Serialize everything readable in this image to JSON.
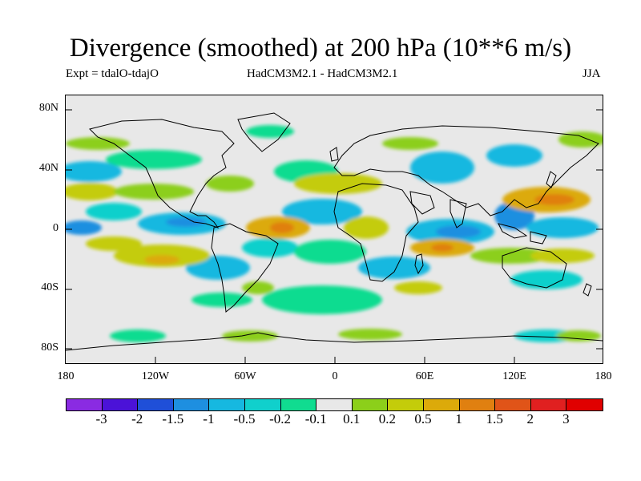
{
  "title": "Divergence (smoothed) at 200 hPa (10**6 m/s)",
  "subtitle_left": "Expt = tdalO-tdajO",
  "subtitle_center": "HadCM3M2.1 - HadCM3M2.1",
  "subtitle_right": "JJA",
  "y_ticks": [
    "80N",
    "40N",
    "0",
    "40S",
    "80S"
  ],
  "x_ticks": [
    "180",
    "120W",
    "60W",
    "0",
    "60E",
    "120E",
    "180"
  ],
  "legend": {
    "levels": [
      "-3",
      "-2",
      "-1.5",
      "-1",
      "-0.5",
      "-0.2",
      "-0.1",
      "0.1",
      "0.2",
      "0.5",
      "1",
      "1.5",
      "2",
      "3"
    ],
    "colors": [
      "#8a2be2",
      "#4b12d8",
      "#1f4fd8",
      "#1e8fe0",
      "#16b8e0",
      "#10d0cc",
      "#10dc90",
      "#e8e8e8",
      "#8ccf1a",
      "#c4cc0a",
      "#dcaa0a",
      "#e08010",
      "#e05418",
      "#e02020",
      "#e00000"
    ]
  }
}
